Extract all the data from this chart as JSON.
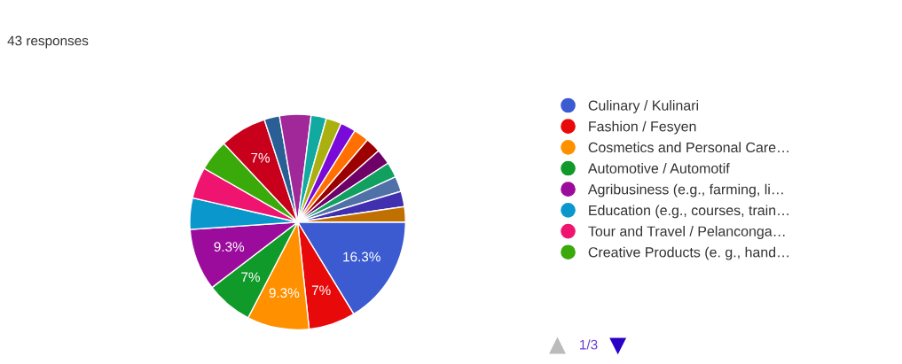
{
  "chart_data": {
    "type": "pie",
    "title": "43 responses",
    "categories": [
      "Culinary / Kulinari",
      "Fashion / Fesyen",
      "Cosmetics and Personal Care…",
      "Automotive / Automotif",
      "Agribusiness (e.g., farming, li…",
      "Education (e.g., courses, train…",
      "Tour and Travel / Pelanconga…",
      "Creative Products (e. g., hand…",
      null,
      null,
      null,
      null,
      null,
      null,
      null,
      null,
      null,
      null,
      null,
      null,
      null
    ],
    "values": [
      16.3,
      7,
      9.3,
      7,
      9.3,
      4.7,
      4.7,
      4.7,
      7,
      2.3,
      4.7,
      2.3,
      2.3,
      2.3,
      2.3,
      2.3,
      2.3,
      2.3,
      2.3,
      2.3,
      2.3
    ],
    "value_labels": [
      "16.3%",
      "7%",
      "9.3%",
      "7%",
      "9.3%",
      null,
      null,
      null,
      "7%",
      null,
      null,
      null,
      null,
      null,
      null,
      null,
      null,
      null,
      null,
      null,
      null
    ],
    "colors": [
      "#3c5bd0",
      "#e80a0a",
      "#ff9000",
      "#0f9a2a",
      "#9c0c9c",
      "#0a98cc",
      "#ee1470",
      "#3aaa0a",
      "#c8001c",
      "#2a5f96",
      "#a02898",
      "#12aaa0",
      "#aab010",
      "#7a0ad8",
      "#ff7000",
      "#9c0000",
      "#6e0068",
      "#12a060",
      "#5070a8",
      "#4030b0",
      "#c07000"
    ],
    "legend": "right",
    "annotations": [
      "1/3"
    ]
  }
}
